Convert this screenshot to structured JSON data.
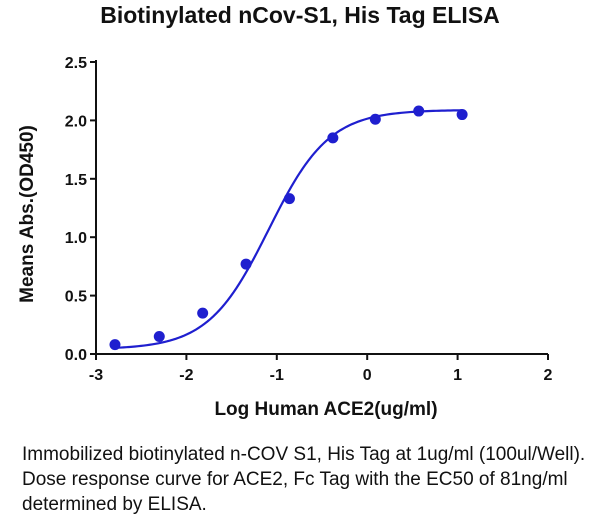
{
  "chart_data": {
    "type": "scatter",
    "title": "Biotinylated nCov-S1, His Tag ELISA",
    "xlabel": "Log Human ACE2(ug/ml)",
    "ylabel": "Means Abs.(OD450)",
    "xlim": [
      -3,
      2
    ],
    "ylim": [
      0,
      2.5
    ],
    "x_ticks": [
      "-3",
      "-2",
      "-1",
      "0",
      "1",
      "2"
    ],
    "y_ticks": [
      "0.0",
      "0.5",
      "1.0",
      "1.5",
      "2.0",
      "2.5"
    ],
    "grid": false,
    "colors": {
      "series": "#1f1fcf",
      "axes": "#111111"
    },
    "series": [
      {
        "points": [
          {
            "x": -2.79,
            "y": 0.08
          },
          {
            "x": -2.3,
            "y": 0.15
          },
          {
            "x": -1.82,
            "y": 0.35
          },
          {
            "x": -1.34,
            "y": 0.77
          },
          {
            "x": -0.86,
            "y": 1.33
          },
          {
            "x": -0.38,
            "y": 1.85
          },
          {
            "x": 0.09,
            "y": 2.01
          },
          {
            "x": 0.57,
            "y": 2.08
          },
          {
            "x": 1.05,
            "y": 2.05
          }
        ],
        "fit": {
          "model": "4PL",
          "bottom": 0.04,
          "top": 2.09,
          "log_ec50": -1.09,
          "hill": 1.3
        }
      }
    ]
  },
  "caption": "Immobilized biotinylated n-COV S1, His Tag at 1ug/ml (100ul/Well). Dose response curve for ACE2, Fc Tag with the EC50 of 81ng/ml determined by ELISA."
}
